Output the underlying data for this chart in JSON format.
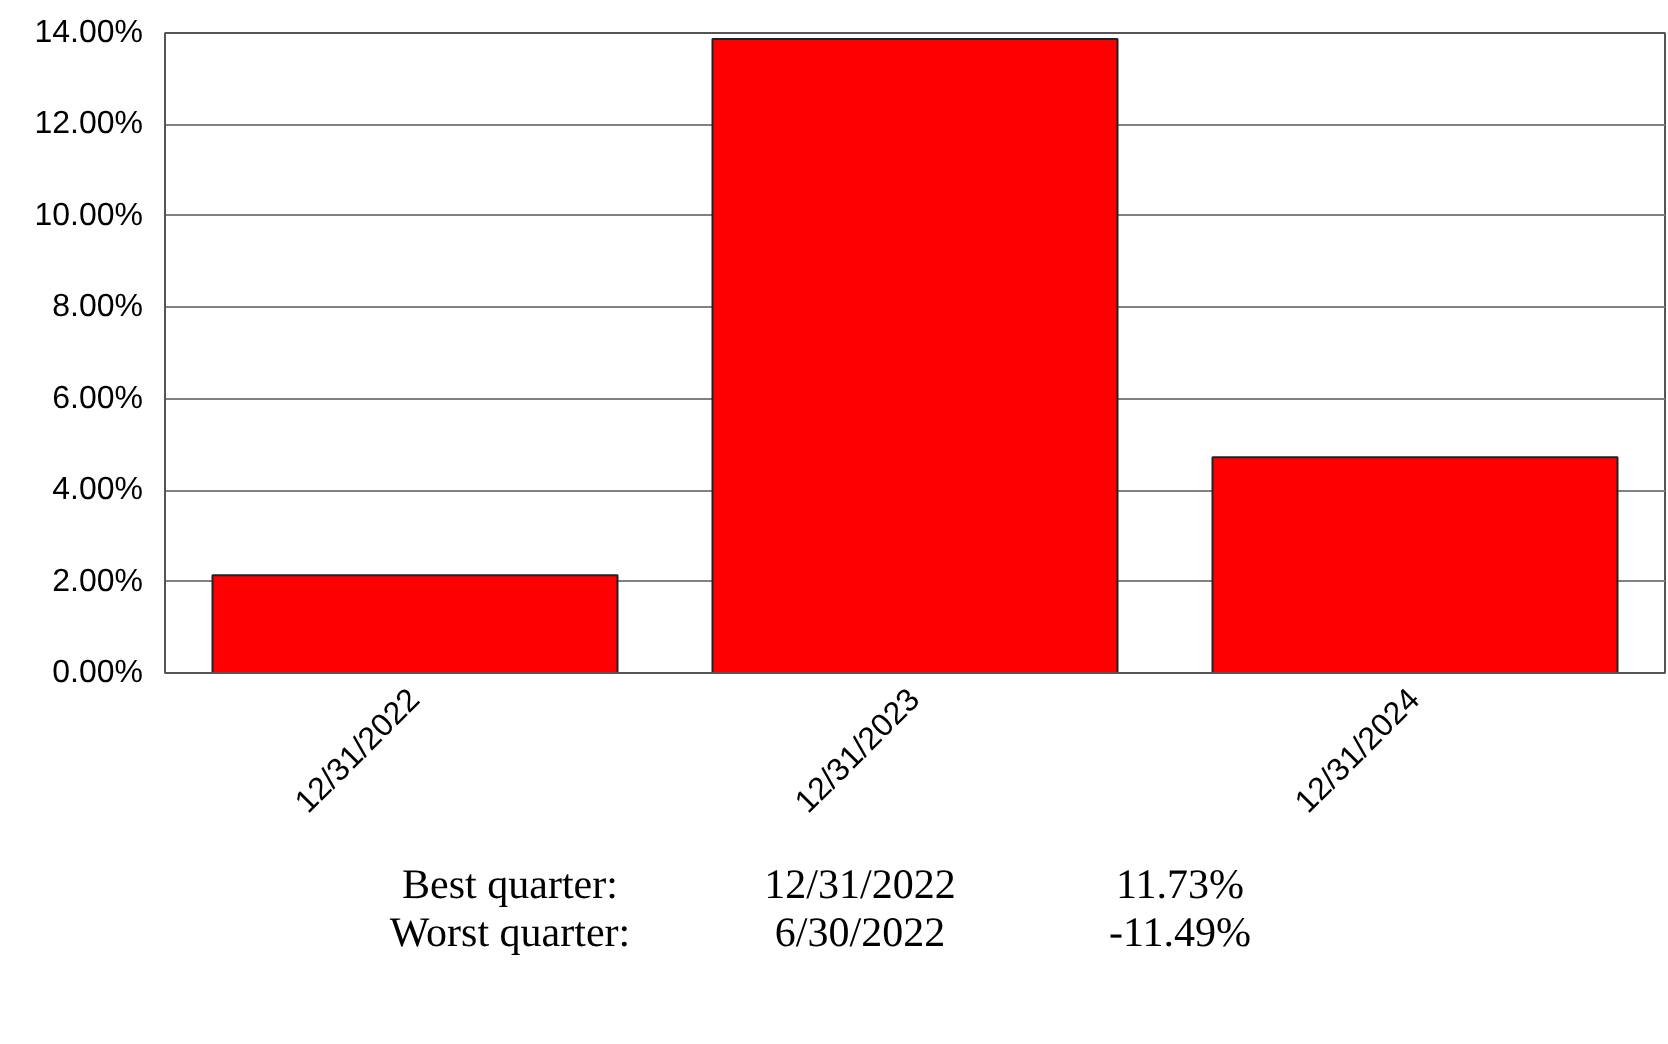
{
  "chart_data": {
    "type": "bar",
    "categories": [
      "12/31/2022",
      "12/31/2023",
      "12/31/2024"
    ],
    "values": [
      2.14,
      13.87,
      4.72
    ],
    "color": "#ff0000",
    "ylim": [
      0,
      14
    ],
    "yticks": [
      {
        "value": 0,
        "label": "0.00%"
      },
      {
        "value": 2,
        "label": "2.00%"
      },
      {
        "value": 4,
        "label": "4.00%"
      },
      {
        "value": 6,
        "label": "6.00%"
      },
      {
        "value": 8,
        "label": "8.00%"
      },
      {
        "value": 10,
        "label": "10.00%"
      },
      {
        "value": 12,
        "label": "12.00%"
      },
      {
        "value": 14,
        "label": "14.00%"
      }
    ],
    "grid": "y",
    "annotations": [
      "Best quarter:",
      "12/31/2022",
      "11.73%",
      "Worst quarter:",
      "6/30/2022",
      "-11.49%"
    ]
  }
}
